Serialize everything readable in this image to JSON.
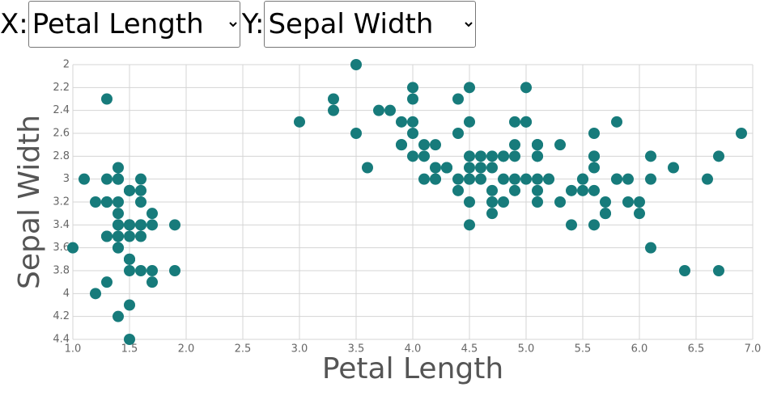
{
  "controls": {
    "x_label": "X:",
    "x_selected": "Petal Length",
    "y_label": "Y:",
    "y_selected": "Sepal Width"
  },
  "chart_data": {
    "type": "scatter",
    "x_label": "Petal Length",
    "y_label": "Sepal Width",
    "color": "#177b7b",
    "grid": true,
    "xlim": [
      1,
      7
    ],
    "ylim": [
      4.4,
      2
    ],
    "xticks": [
      {
        "value": 1,
        "label": "1.0"
      },
      {
        "value": 1.5,
        "label": "1.5"
      },
      {
        "value": 2,
        "label": "2.0"
      },
      {
        "value": 2.5,
        "label": "2.5"
      },
      {
        "value": 3,
        "label": "3.0"
      },
      {
        "value": 3.5,
        "label": "3.5"
      },
      {
        "value": 4,
        "label": "4.0"
      },
      {
        "value": 4.5,
        "label": "4.5"
      },
      {
        "value": 5,
        "label": "5.0"
      },
      {
        "value": 5.5,
        "label": "5.5"
      },
      {
        "value": 6,
        "label": "6.0"
      },
      {
        "value": 6.5,
        "label": "6.5"
      },
      {
        "value": 7,
        "label": "7.0"
      }
    ],
    "yticks": [
      2,
      2.2,
      2.4,
      2.6,
      2.8,
      3,
      3.2,
      3.4,
      3.6,
      3.8,
      4,
      4.2,
      4.4
    ],
    "x": [
      1.4,
      1.4,
      1.3,
      1.5,
      1.4,
      1.7,
      1.4,
      1.5,
      1.4,
      1.5,
      1.5,
      1.6,
      1.4,
      1.1,
      1.2,
      1.5,
      1.3,
      1.4,
      1.7,
      1.5,
      1.7,
      1.5,
      1.0,
      1.7,
      1.9,
      1.6,
      1.6,
      1.5,
      1.4,
      1.6,
      1.6,
      1.5,
      1.5,
      1.4,
      1.5,
      1.2,
      1.3,
      1.4,
      1.3,
      1.5,
      1.3,
      1.3,
      1.3,
      1.6,
      1.9,
      1.4,
      1.6,
      1.4,
      1.5,
      1.4,
      4.7,
      4.5,
      4.9,
      4.0,
      4.6,
      4.5,
      4.7,
      3.3,
      4.6,
      3.9,
      3.5,
      4.2,
      4.0,
      4.7,
      3.6,
      4.4,
      4.5,
      4.1,
      4.5,
      3.9,
      4.8,
      4.0,
      4.9,
      4.7,
      4.3,
      4.4,
      4.8,
      5.0,
      4.5,
      3.5,
      3.8,
      3.7,
      3.9,
      5.1,
      4.5,
      4.5,
      4.7,
      4.4,
      4.1,
      4.0,
      4.4,
      4.6,
      4.0,
      3.3,
      4.2,
      4.2,
      4.2,
      4.3,
      3.0,
      4.1,
      6.0,
      5.1,
      5.9,
      5.6,
      5.8,
      6.6,
      4.5,
      6.3,
      5.8,
      6.1,
      5.1,
      5.3,
      5.5,
      5.0,
      5.1,
      5.3,
      5.5,
      6.7,
      6.9,
      5.0,
      5.7,
      4.9,
      6.7,
      4.9,
      5.7,
      6.0,
      4.8,
      4.9,
      5.6,
      5.8,
      6.1,
      6.4,
      5.6,
      5.1,
      5.6,
      6.1,
      5.6,
      5.5,
      4.8,
      5.4,
      5.6,
      5.1,
      5.1,
      5.9,
      5.7,
      5.2,
      5.0,
      5.2,
      5.4,
      5.1
    ],
    "values": [
      3.5,
      3.0,
      3.2,
      3.1,
      3.6,
      3.9,
      3.4,
      3.4,
      2.9,
      3.1,
      3.7,
      3.4,
      3.0,
      3.0,
      4.0,
      4.4,
      3.9,
      3.5,
      3.8,
      3.8,
      3.4,
      3.7,
      3.6,
      3.3,
      3.4,
      3.0,
      3.4,
      3.5,
      3.4,
      3.2,
      3.1,
      3.4,
      4.1,
      4.2,
      3.1,
      3.2,
      3.5,
      3.6,
      3.0,
      3.4,
      3.5,
      2.3,
      3.2,
      3.5,
      3.8,
      3.0,
      3.8,
      3.2,
      3.7,
      3.3,
      3.2,
      3.2,
      3.1,
      2.3,
      2.8,
      2.8,
      3.3,
      2.4,
      2.9,
      2.7,
      2.0,
      3.0,
      2.2,
      2.9,
      2.9,
      3.1,
      3.0,
      2.7,
      2.2,
      2.5,
      3.2,
      2.8,
      2.5,
      2.8,
      2.9,
      3.0,
      2.8,
      3.0,
      2.9,
      2.6,
      2.4,
      2.4,
      2.7,
      2.7,
      3.0,
      3.4,
      3.1,
      2.3,
      3.0,
      2.5,
      2.6,
      3.0,
      2.6,
      2.3,
      2.7,
      3.0,
      2.9,
      2.9,
      2.5,
      2.8,
      3.3,
      2.7,
      3.0,
      2.9,
      3.0,
      3.0,
      2.5,
      2.9,
      2.5,
      3.6,
      3.2,
      2.7,
      3.0,
      2.5,
      2.8,
      3.2,
      3.0,
      3.8,
      2.6,
      2.2,
      3.2,
      2.8,
      2.8,
      2.7,
      3.3,
      3.2,
      2.8,
      3.0,
      2.8,
      3.0,
      2.8,
      3.8,
      2.8,
      2.8,
      2.6,
      3.0,
      3.4,
      3.1,
      3.0,
      3.1,
      3.1,
      3.1,
      2.7,
      3.2,
      3.3,
      3.0,
      2.5,
      3.0,
      3.4,
      3.0
    ]
  }
}
